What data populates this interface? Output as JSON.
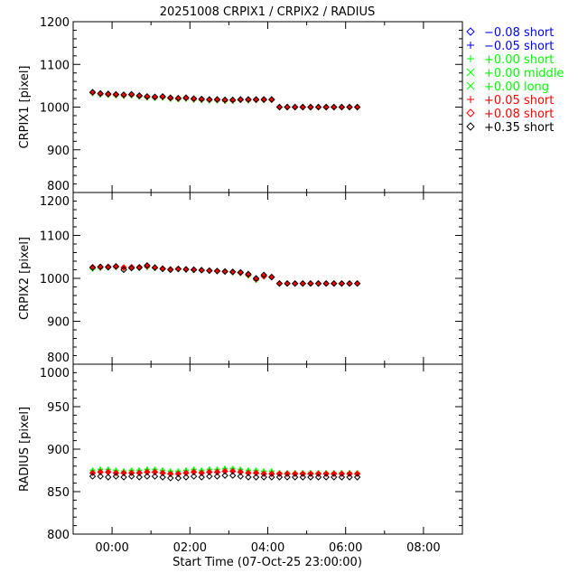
{
  "chart_data": {
    "type": "scatter",
    "title": "20251008 CRPIX1 / CRPIX2 / RADIUS",
    "xlabel": "Start Time (07-Oct-25 23:00:00)",
    "xlim": [
      -1,
      9
    ],
    "x_units": "hours relative to 08-Oct-25 00:00",
    "xticks": [
      {
        "v": 0,
        "label": "00:00"
      },
      {
        "v": 2,
        "label": "02:00"
      },
      {
        "v": 4,
        "label": "04:00"
      },
      {
        "v": 6,
        "label": "06:00"
      },
      {
        "v": 8,
        "label": "08:00"
      }
    ],
    "x": [
      -0.5,
      -0.3,
      -0.1,
      0.1,
      0.3,
      0.5,
      0.7,
      0.9,
      1.1,
      1.3,
      1.5,
      1.7,
      1.9,
      2.1,
      2.3,
      2.5,
      2.7,
      2.9,
      3.1,
      3.3,
      3.5,
      3.7,
      3.9,
      4.1,
      4.3,
      4.5,
      4.7,
      4.9,
      5.1,
      5.3,
      5.5,
      5.7,
      5.9,
      6.1,
      6.3
    ],
    "panels": [
      {
        "ylabel": "CRPIX1 [pixel]",
        "ylim": [
          800,
          1200
        ],
        "yticks": [
          "800",
          "900",
          "1000",
          "1100",
          "1200"
        ],
        "ytick_values": [
          800,
          900,
          1000,
          1100,
          1200
        ],
        "series": {
          "green": [
            1032,
            1029,
            1028,
            1027,
            1026,
            1027,
            1024,
            1022,
            1021,
            1022,
            1019,
            1018,
            1019,
            1017,
            1016,
            1015,
            1015,
            1014,
            1014,
            1016,
            1015,
            1016,
            1016,
            1017,
            null,
            null,
            null,
            null,
            null,
            null,
            null,
            null,
            null,
            null,
            null
          ],
          "red": [
            1034,
            1031,
            1030,
            1029,
            1028,
            1029,
            1026,
            1024,
            1023,
            1024,
            1021,
            1020,
            1021,
            1019,
            1018,
            1017,
            1017,
            1016,
            1016,
            1017,
            1017,
            1017,
            1017,
            1017,
            1000,
            1000,
            1000,
            1000,
            1000,
            1000,
            1000,
            1000,
            1000,
            1000,
            1000
          ],
          "black": [
            1035,
            1032,
            1031,
            1030,
            1029,
            1030,
            1027,
            1025,
            1024,
            1025,
            1022,
            1021,
            1022,
            1020,
            1019,
            1018,
            1018,
            1017,
            1017,
            1018,
            1018,
            1018,
            1018,
            1018,
            1000,
            1000,
            1000,
            1000,
            1000,
            1000,
            1000,
            1000,
            1000,
            1000,
            1000
          ]
        }
      },
      {
        "ylabel": "CRPIX2 [pixel]",
        "ylim": [
          800,
          1200
        ],
        "yticks": [
          "800",
          "900",
          "1000",
          "1100",
          "1200"
        ],
        "ytick_values": [
          800,
          900,
          1000,
          1100,
          1200
        ],
        "series": {
          "green": [
            1022,
            1024,
            1025,
            1026,
            1024,
            1024,
            1025,
            1026,
            1024,
            1022,
            1021,
            1021,
            1020,
            1019,
            1019,
            1018,
            1017,
            1016,
            1014,
            1012,
            1006,
            996,
            1004,
            1003,
            null,
            null,
            null,
            null,
            null,
            null,
            null,
            null,
            null,
            null,
            null
          ],
          "red": [
            1026,
            1026,
            1027,
            1027,
            1025,
            1026,
            1026,
            1028,
            1025,
            1023,
            1021,
            1022,
            1021,
            1020,
            1019,
            1018,
            1017,
            1016,
            1015,
            1013,
            1008,
            998,
            1005,
            1003,
            988,
            988,
            988,
            988,
            988,
            988,
            988,
            988,
            988,
            988,
            988
          ],
          "black": [
            1025,
            1027,
            1026,
            1028,
            1020,
            1024,
            1025,
            1030,
            1025,
            1022,
            1020,
            1022,
            1021,
            1020,
            1019,
            1018,
            1017,
            1016,
            1015,
            1014,
            1010,
            1000,
            1008,
            1003,
            988,
            988,
            988,
            988,
            988,
            988,
            988,
            988,
            988,
            988,
            988
          ]
        }
      },
      {
        "ylabel": "RADIUS [pixel]",
        "ylim": [
          800,
          1000
        ],
        "yticks": [
          "800",
          "850",
          "900",
          "950",
          "1000"
        ],
        "ytick_values": [
          800,
          850,
          900,
          950,
          1000
        ],
        "series": {
          "green": [
            875,
            876,
            876,
            875,
            874,
            875,
            875,
            876,
            876,
            875,
            874,
            874,
            875,
            876,
            875,
            876,
            876,
            877,
            877,
            876,
            875,
            875,
            874,
            874,
            872,
            872,
            872,
            872,
            872,
            872,
            872,
            872,
            872,
            872,
            872
          ],
          "red": [
            872,
            873,
            873,
            872,
            872,
            872,
            872,
            873,
            873,
            872,
            871,
            871,
            872,
            873,
            872,
            873,
            873,
            874,
            874,
            873,
            872,
            872,
            871,
            871,
            871,
            871,
            871,
            871,
            871,
            871,
            871,
            871,
            871,
            871,
            871
          ],
          "black": [
            868,
            868,
            867,
            868,
            867,
            868,
            867,
            868,
            868,
            867,
            866,
            866,
            867,
            868,
            867,
            868,
            868,
            869,
            869,
            868,
            867,
            867,
            867,
            867,
            867,
            867,
            867,
            867,
            867,
            867,
            867,
            867,
            867,
            867,
            867
          ]
        }
      }
    ],
    "legend": {
      "placement": "top-right outside",
      "entries": [
        {
          "symbol": "diamond",
          "label": "−0.08 short",
          "color": "#0000ff"
        },
        {
          "symbol": "plus",
          "label": "−0.05 short",
          "color": "#0000ff"
        },
        {
          "symbol": "plus",
          "label": "+0.00 short",
          "color": "#00ff00"
        },
        {
          "symbol": "cross",
          "label": "+0.00 middle",
          "color": "#00ff00"
        },
        {
          "symbol": "cross",
          "label": "+0.00 long",
          "color": "#00ff00"
        },
        {
          "symbol": "plus",
          "label": "+0.05 short",
          "color": "#ff0000"
        },
        {
          "symbol": "diamond",
          "label": "+0.08 short",
          "color": "#ff0000"
        },
        {
          "symbol": "diamond",
          "label": "+0.35 short",
          "color": "#000000"
        }
      ]
    },
    "colors": {
      "green": "#00ff00",
      "red": "#ff0000",
      "black": "#000000",
      "blue": "#0000ff"
    }
  }
}
